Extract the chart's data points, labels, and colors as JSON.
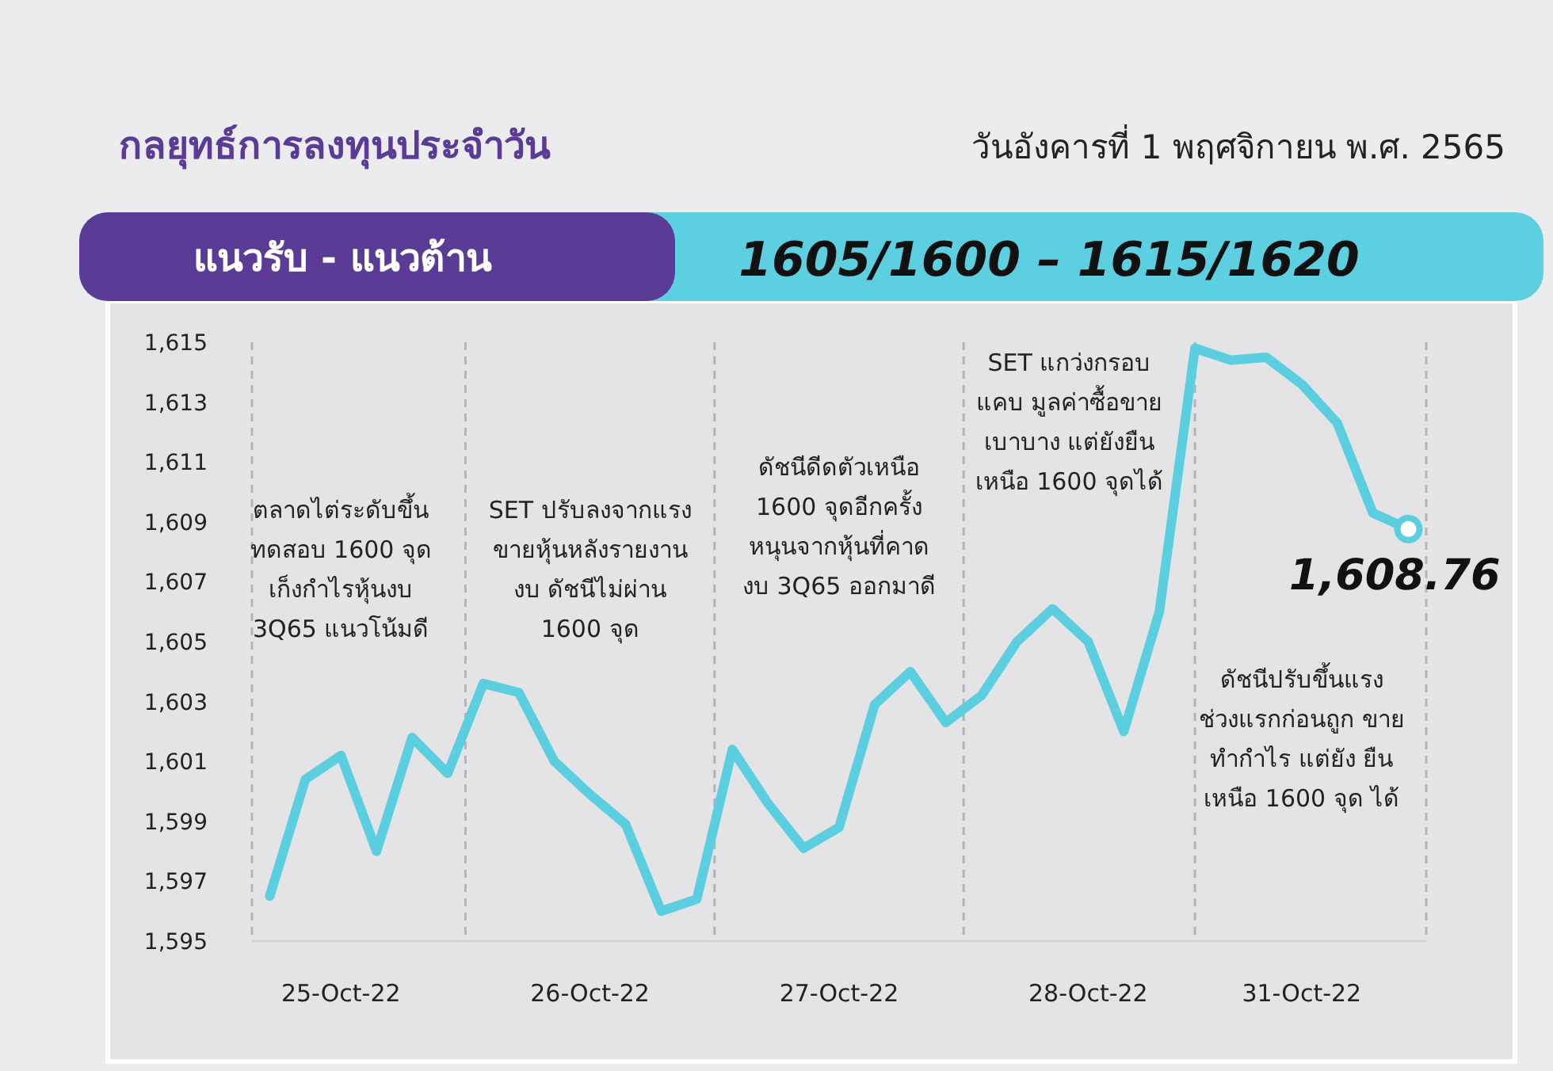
{
  "chart_data": {
    "type": "line",
    "title": "กลยุทธ์การลงทุนประจำวัน",
    "subtitle": "วันอังคารที่ 1 พฤศจิกายน พ.ศ. 2565",
    "annotations": [
      "แนวรับ - แนวต้าน",
      "1605/1600 – 1615/1620",
      "ตลาดไต่ระดับขึ้น ทดสอบ 1600 จุด เก็งกำไรหุ้นงบ 3Q65 แนวโน้มดี",
      "SET ปรับลงจากแรง ขายหุ้นหลังรายงาน งบ ดัชนีไม่ผ่าน 1600 จุด",
      "ดัชนีดีดตัวเหนือ 1600 จุดอีกครั้ง หนุนจากหุ้นที่คาด งบ 3Q65 ออกมาดี",
      "SET แกว่งกรอบ แคบ มูลค่าซื้อขาย เบาบาง แต่ยังยืน เหนือ 1600 จุดได้",
      "ดัชนีปรับขึ้นแรง ช่วงแรกก่อนถูก ขายทำกำไร แต่ยัง ยืนเหนือ 1600 จุด ได้",
      {
        "text": "1,608.76",
        "y": 1608.76
      }
    ],
    "categories": [
      null,
      null,
      "25-Oct-22",
      null,
      null,
      null,
      null,
      null,
      null,
      "26-Oct-22",
      null,
      null,
      null,
      null,
      null,
      null,
      "27-Oct-22",
      null,
      null,
      null,
      null,
      null,
      null,
      "28-Oct-22",
      null,
      null,
      null,
      null,
      null,
      "31-Oct-22",
      null,
      null,
      null
    ],
    "series": [
      {
        "color": "#5bcfdf",
        "values": [
          1596.5,
          1600.4,
          1601.2,
          1598.0,
          1601.8,
          1600.6,
          1603.6,
          1603.3,
          1601.0,
          1599.9,
          1598.9,
          1596.0,
          1596.4,
          1601.4,
          1599.6,
          1598.1,
          1598.8,
          1602.9,
          1604.0,
          1602.3,
          1603.2,
          1605.0,
          1606.1,
          1605.0,
          1602.0,
          1606.0,
          1614.8,
          1614.4,
          1614.5,
          1613.6,
          1612.3,
          1609.3,
          1608.76
        ]
      }
    ],
    "ylim": [
      1595,
      1615
    ],
    "yticks": [
      {
        "value": 1595,
        "label": "1,595"
      },
      {
        "value": 1597,
        "label": "1,597"
      },
      {
        "value": 1599,
        "label": "1,599"
      },
      {
        "value": 1601,
        "label": "1,601"
      },
      {
        "value": 1603,
        "label": "1,603"
      },
      {
        "value": 1605,
        "label": "1,605"
      },
      {
        "value": 1607,
        "label": "1,607"
      },
      {
        "value": 1609,
        "label": "1,609"
      },
      {
        "value": 1611,
        "label": "1,611"
      },
      {
        "value": 1613,
        "label": "1,613"
      },
      {
        "value": 1615,
        "label": "1,615"
      }
    ],
    "grid": "x",
    "line_style": "solid"
  }
}
